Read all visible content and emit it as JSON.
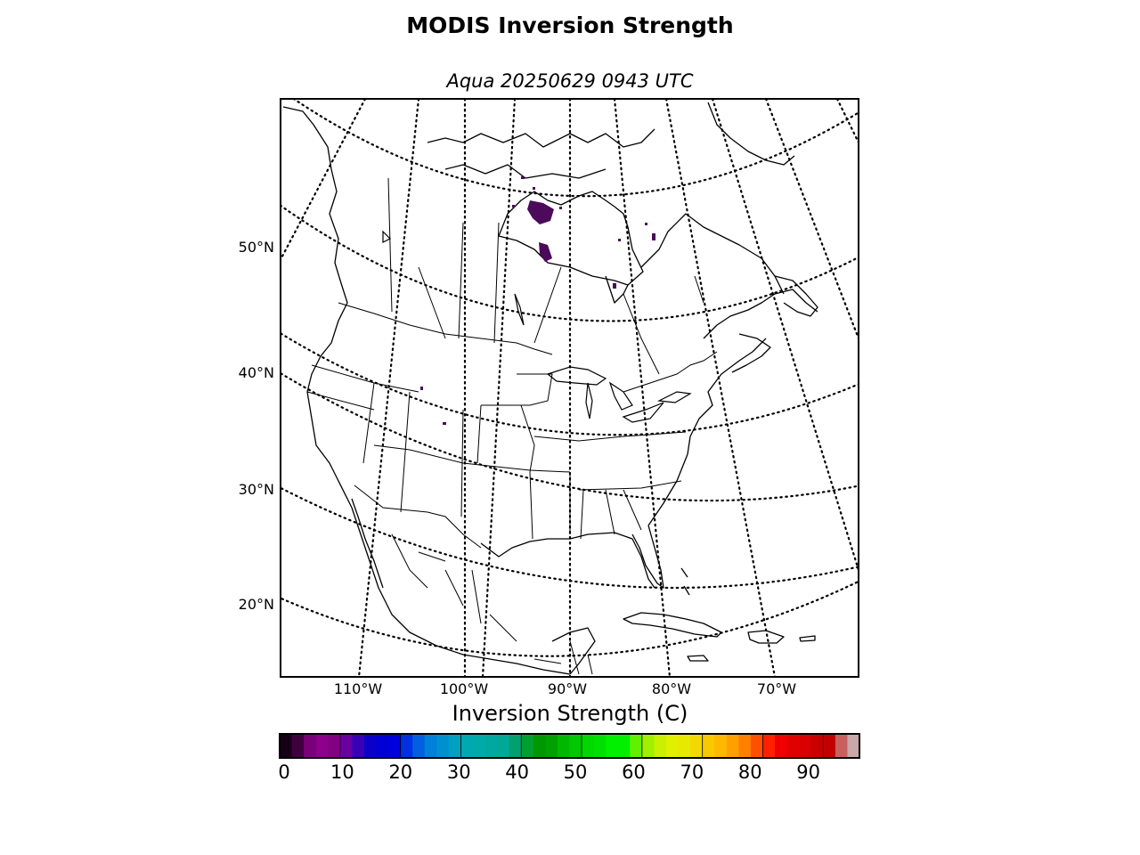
{
  "title": "MODIS Inversion Strength",
  "subtitle": "Aqua 20250629 0943 UTC",
  "map": {
    "projection": "lambert-conformal",
    "region": "North America",
    "grid_line_style": "dotted",
    "lat_labels": [
      "50°N",
      "40°N",
      "30°N",
      "20°N"
    ],
    "lon_labels": [
      "110°W",
      "100°W",
      "90°W",
      "80°W",
      "70°W"
    ],
    "data_color": "#4b0a5a",
    "data_regions": [
      "Hudson Bay west coast",
      "Hudson Bay southwest",
      "James Bay",
      "northern Quebec",
      "Wyoming"
    ]
  },
  "colorbar": {
    "label": "Inversion Strength (C)",
    "min": 0,
    "max": 98,
    "step": 2,
    "ticks": [
      "0",
      "10",
      "20",
      "30",
      "40",
      "50",
      "60",
      "70",
      "80",
      "90"
    ],
    "colors": [
      "#160016",
      "#400040",
      "#7a007a",
      "#8c008c",
      "#820082",
      "#6a00a0",
      "#3a00b8",
      "#0a00c8",
      "#0000d4",
      "#0000dc",
      "#0030e0",
      "#0060e0",
      "#0080d8",
      "#0090d0",
      "#00a0c0",
      "#00a8b0",
      "#00aaa8",
      "#00a8a0",
      "#00a898",
      "#00a070",
      "#00a030",
      "#009800",
      "#00a000",
      "#00b800",
      "#00c800",
      "#00d800",
      "#00e000",
      "#00f000",
      "#00f000",
      "#60f000",
      "#a0f000",
      "#c8f000",
      "#e0f000",
      "#e8e800",
      "#f0d800",
      "#f8c800",
      "#ffb800",
      "#ffa000",
      "#ff8000",
      "#ff5000",
      "#ff2000",
      "#f00000",
      "#e00000",
      "#d80000",
      "#c80000",
      "#c00000",
      "#c86060",
      "#c8a8a8"
    ]
  }
}
